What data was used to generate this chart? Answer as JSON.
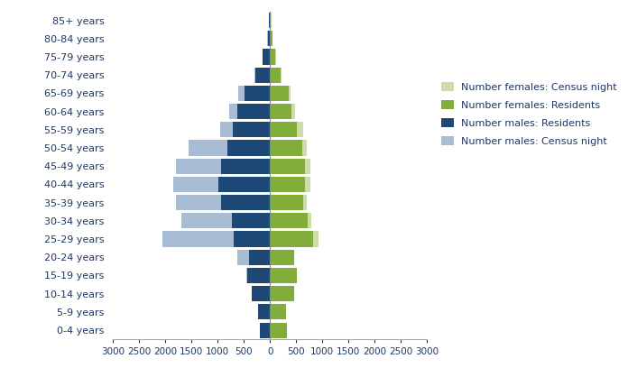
{
  "age_groups": [
    "0-4 years",
    "5-9 years",
    "10-14 years",
    "15-19 years",
    "20-24 years",
    "25-29 years",
    "30-34 years",
    "35-39 years",
    "40-44 years",
    "45-49 years",
    "50-54 years",
    "55-59 years",
    "60-64 years",
    "65-69 years",
    "70-74 years",
    "75-79 years",
    "80-84 years",
    "85+ years"
  ],
  "males_census": [
    200,
    230,
    350,
    450,
    620,
    2050,
    1700,
    1800,
    1850,
    1800,
    1550,
    950,
    780,
    610,
    300,
    150,
    50,
    30
  ],
  "males_residents": [
    200,
    230,
    350,
    430,
    410,
    690,
    730,
    940,
    980,
    940,
    820,
    710,
    620,
    490,
    275,
    135,
    42,
    22
  ],
  "females_census": [
    330,
    310,
    460,
    510,
    390,
    920,
    780,
    700,
    770,
    770,
    710,
    630,
    480,
    400,
    225,
    120,
    52,
    26
  ],
  "females_residents": [
    330,
    310,
    460,
    510,
    460,
    820,
    720,
    625,
    665,
    665,
    610,
    520,
    410,
    355,
    200,
    105,
    42,
    21
  ],
  "color_males_census": "#a8bdd4",
  "color_males_residents": "#1e4976",
  "color_females_residents": "#82ad3a",
  "color_females_census": "#cddca8",
  "xlim": 3000,
  "legend_labels": [
    "Number females: Census night",
    "Number females: Residents",
    "Number males: Residents",
    "Number males: Census night"
  ],
  "legend_colors": [
    "#cddca8",
    "#82ad3a",
    "#1e4976",
    "#a8bdd4"
  ],
  "text_color": "#1f3864",
  "background_color": "#ffffff"
}
